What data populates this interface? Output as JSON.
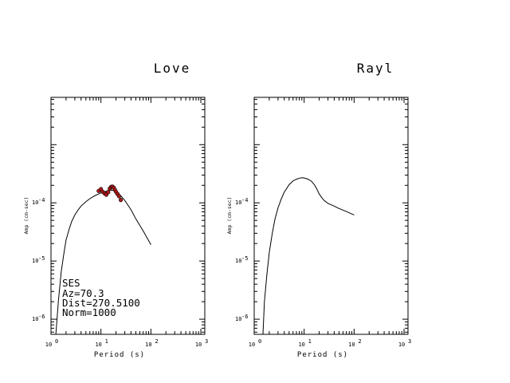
{
  "chart_data": [
    {
      "type": "line",
      "title": "Love",
      "xlabel": "Period (s)",
      "ylabel": "Amp (cm-sec)",
      "x_scale": "log",
      "y_scale": "log",
      "xlim": [
        1,
        1200
      ],
      "ylim": [
        5.5e-07,
        0.0065
      ],
      "x_ticks": [
        {
          "base": "10",
          "exp": "0",
          "value": 1
        },
        {
          "base": "10",
          "exp": "1",
          "value": 10
        },
        {
          "base": "10",
          "exp": "2",
          "value": 100
        },
        {
          "base": "10",
          "exp": "3",
          "value": 1000
        }
      ],
      "y_ticks": [
        {
          "base": "10",
          "exp": "-6",
          "value": 1e-06
        },
        {
          "base": "10",
          "exp": "-5",
          "value": 1e-05
        },
        {
          "base": "10",
          "exp": "-4",
          "value": 0.0001
        }
      ],
      "grid": false,
      "series": [
        {
          "kind": "line",
          "x": [
            1.25,
            1.4,
            1.6,
            1.8,
            2.0,
            2.3,
            2.6,
            3.0,
            3.5,
            4.0,
            5.0,
            6.0,
            7.0,
            8.0,
            9.0,
            10.0,
            12.0,
            14.0,
            16.0,
            18.0,
            20.0,
            25.0,
            30.0,
            40.0,
            50.0,
            70.0,
            100.0
          ],
          "y": [
            5.5e-07,
            2e-06,
            6.5e-06,
            1.3e-05,
            2.3e-05,
            3.5e-05,
            4.8e-05,
            6.2e-05,
            7.6e-05,
            8.8e-05,
            0.000105,
            0.000118,
            0.000128,
            0.000136,
            0.000142,
            0.000148,
            0.000156,
            0.000162,
            0.000165,
            0.000162,
            0.000155,
            0.000132,
            0.00011,
            7.6e-05,
            5.3e-05,
            3.3e-05,
            1.9e-05
          ]
        },
        {
          "kind": "scatter",
          "color": "#b01818",
          "x": [
            9.0,
            10.0,
            10.8,
            11.8,
            12.8,
            14.0,
            15.0,
            16.0,
            17.0,
            18.0,
            19.0,
            20.0,
            21.5,
            23.0,
            25.0
          ],
          "y": [
            0.00016,
            0.000172,
            0.000155,
            0.000145,
            0.000138,
            0.000152,
            0.000175,
            0.000188,
            0.00019,
            0.000182,
            0.000168,
            0.000155,
            0.000142,
            0.00013,
            0.000112
          ]
        }
      ],
      "annotation": [
        "SES",
        "Az=70.3",
        "Dist=270.5100",
        "Norm=1000"
      ]
    },
    {
      "type": "line",
      "title": "Rayl",
      "xlabel": "Period (s)",
      "ylabel": "Amp (cm-sec)",
      "x_scale": "log",
      "y_scale": "log",
      "xlim": [
        1,
        1200
      ],
      "ylim": [
        5.5e-07,
        0.0065
      ],
      "x_ticks": [
        {
          "base": "10",
          "exp": "0",
          "value": 1
        },
        {
          "base": "10",
          "exp": "1",
          "value": 10
        },
        {
          "base": "10",
          "exp": "2",
          "value": 100
        },
        {
          "base": "10",
          "exp": "3",
          "value": 1000
        }
      ],
      "y_ticks": [
        {
          "base": "10",
          "exp": "-6",
          "value": 1e-06
        },
        {
          "base": "10",
          "exp": "-5",
          "value": 1e-05
        },
        {
          "base": "10",
          "exp": "-4",
          "value": 0.0001
        }
      ],
      "grid": false,
      "series": [
        {
          "kind": "line",
          "x": [
            1.5,
            1.6,
            1.8,
            2.0,
            2.3,
            2.6,
            3.0,
            3.5,
            4.0,
            5.0,
            6.0,
            7.0,
            8.0,
            9.0,
            10.0,
            12.0,
            14.0,
            16.0,
            18.0,
            20.0,
            23.0,
            25.0,
            30.0,
            40.0,
            50.0,
            70.0,
            100.0
          ],
          "y": [
            5.5e-07,
            2e-06,
            6e-06,
            1.4e-05,
            3e-05,
            5.2e-05,
            8.2e-05,
            0.000118,
            0.000152,
            0.000205,
            0.000238,
            0.000255,
            0.000265,
            0.00027,
            0.000268,
            0.000255,
            0.000235,
            0.000205,
            0.000172,
            0.000142,
            0.00012,
            0.00011,
            9.8e-05,
            8.8e-05,
            8e-05,
            7.1e-05,
            6.2e-05
          ]
        }
      ]
    }
  ]
}
